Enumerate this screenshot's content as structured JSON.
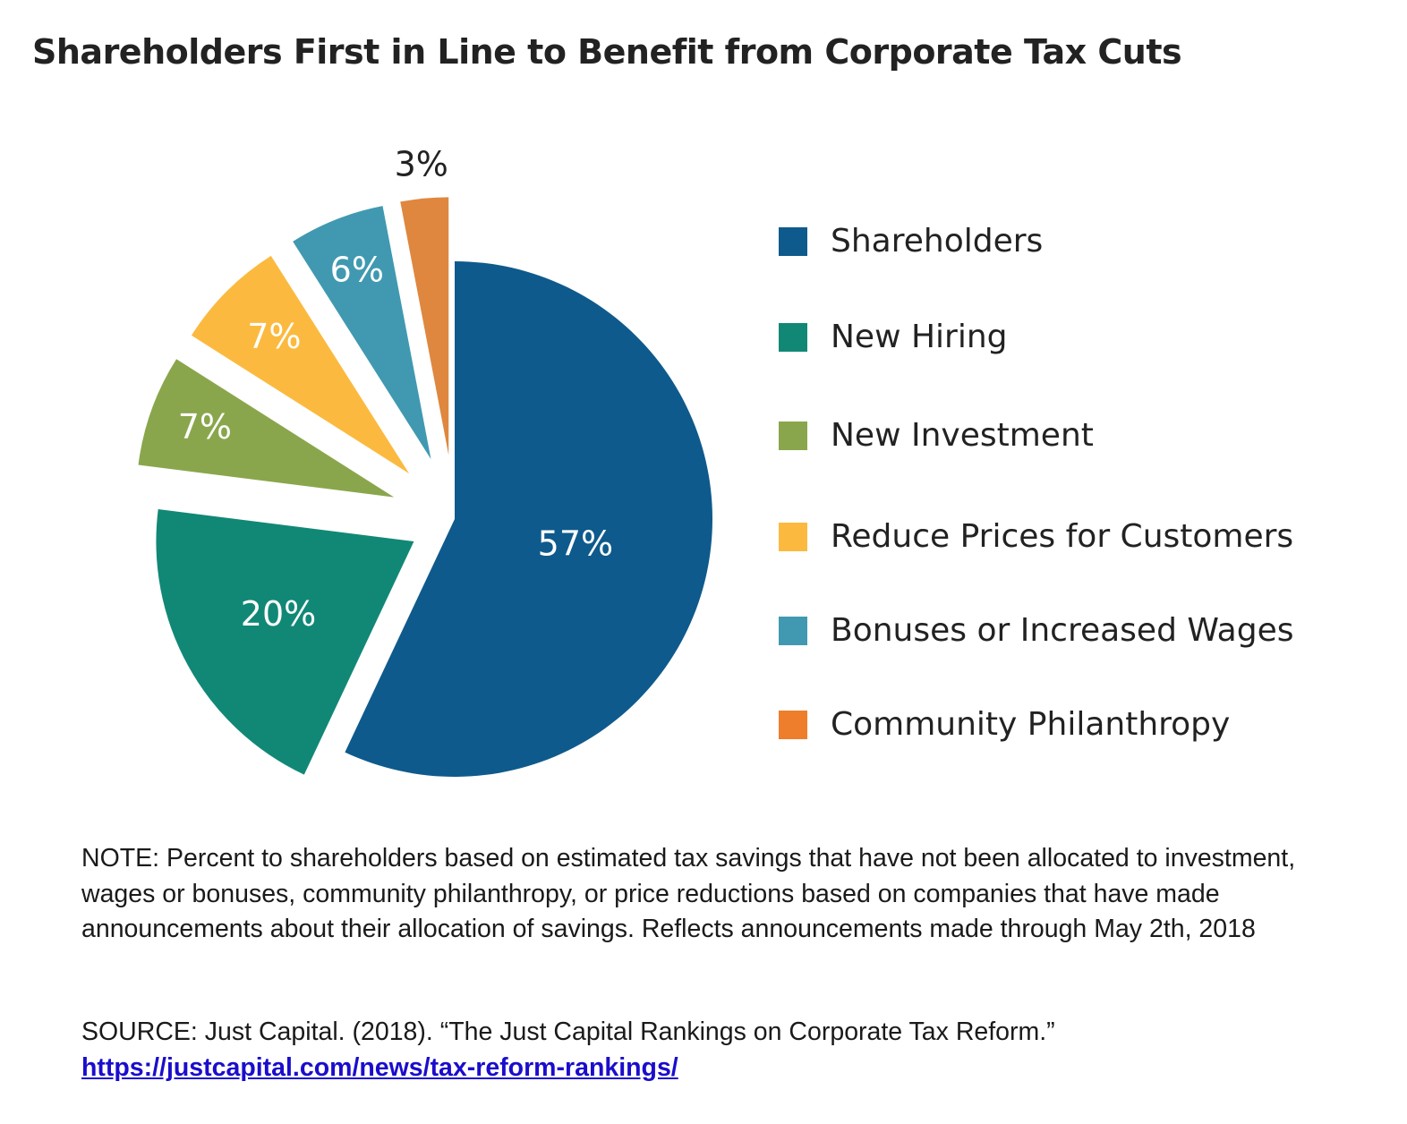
{
  "chart_data": {
    "type": "pie",
    "title": "Shareholders First in Line to Benefit from Corporate Tax Cuts",
    "categories": [
      "Shareholders",
      "New Hiring",
      "New Investment",
      "Reduce Prices for Customers",
      "Bonuses or Increased Wages",
      "Community Philanthropy"
    ],
    "values": [
      57,
      20,
      7,
      7,
      6,
      3
    ],
    "value_labels": [
      "57%",
      "20%",
      "7%",
      "7%",
      "6%",
      "3%"
    ],
    "colors": [
      "#0f5a8c",
      "#118876",
      "#8aa64c",
      "#fbba3f",
      "#4099b1",
      "#df873f"
    ],
    "legend": {
      "position": "right",
      "items": [
        {
          "label": "Shareholders",
          "color": "#0f5a8c"
        },
        {
          "label": "New Hiring",
          "color": "#118876"
        },
        {
          "label": "New Investment",
          "color": "#8aa64c"
        },
        {
          "label": "Reduce Prices for Customers",
          "color": "#fbba3f"
        },
        {
          "label": "Bonuses or Increased Wages",
          "color": "#4099b1"
        },
        {
          "label": "Community Philanthropy",
          "color": "#ee7d2c"
        }
      ]
    }
  },
  "note": "NOTE: Percent to shareholders based on estimated tax savings that have not been allocated to investment, wages or bonuses,  community philanthropy, or price reductions based on companies that have made announcements about their allocation of savings. Reflects announcements made through May 2th, 2018",
  "source": {
    "text": "SOURCE: Just Capital. (2018). “The Just Capital Rankings on Corporate Tax Reform.”",
    "link": "https://justcapital.com/news/tax-reform-rankings/"
  }
}
